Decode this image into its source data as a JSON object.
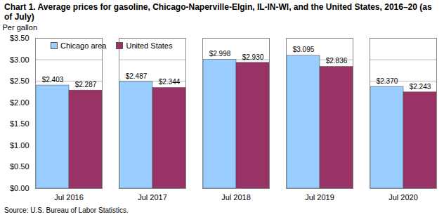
{
  "chart_data": {
    "type": "bar",
    "title": "Chart 1. Average prices for gasoline, Chicago-Naperville-Elgin, IL-IN-WI, and the United States, 2016–20  (as of July)",
    "y_label": "Per gallon",
    "caption": "Source: U.S. Bureau of Labor Statistics.",
    "categories": [
      "Jul 2016",
      "Jul 2017",
      "Jul 2018",
      "Jul 2019",
      "Jul 2020"
    ],
    "series": [
      {
        "name": "Chicago area",
        "color": "#99ccff",
        "values": [
          2.403,
          2.487,
          2.998,
          3.095,
          2.37
        ],
        "value_labels": [
          "$2.403",
          "$2.487",
          "$2.998",
          "$3.095",
          "$2.370"
        ]
      },
      {
        "name": "United States",
        "color": "#993366",
        "values": [
          2.287,
          2.344,
          2.93,
          2.836,
          2.243
        ],
        "value_labels": [
          "$2.287",
          "$2.344",
          "$2.930",
          "$2.836",
          "$2.243"
        ]
      }
    ],
    "ylim": [
      0,
      3.5
    ],
    "yticks": [
      {
        "value": 0,
        "label": "$0.00"
      },
      {
        "value": 0.5,
        "label": "$0.50"
      },
      {
        "value": 1,
        "label": "$1.00"
      },
      {
        "value": 1.5,
        "label": "$1.50"
      },
      {
        "value": 2,
        "label": "$2.00"
      },
      {
        "value": 2.5,
        "label": "$2.50"
      },
      {
        "value": 3,
        "label": "$3.00"
      },
      {
        "value": 3.5,
        "label": "$3.50"
      }
    ],
    "grid": true,
    "legend": "top-left",
    "data_labels": true
  }
}
